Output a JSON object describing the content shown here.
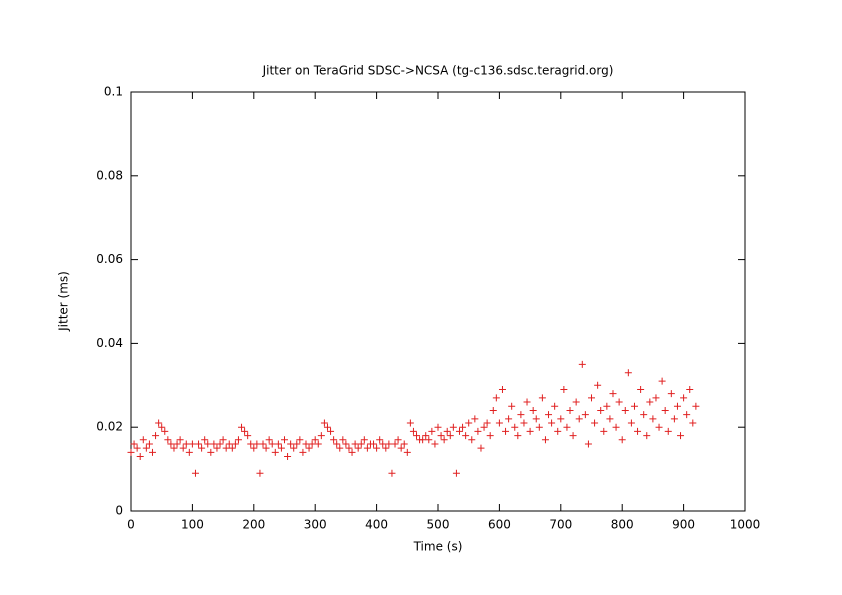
{
  "chart_data": {
    "type": "scatter",
    "title": "Jitter on TeraGrid SDSC->NCSA (tg-c136.sdsc.teragrid.org)",
    "x_label": "Time (s)",
    "y_label": "Jitter (ms)",
    "x": [
      0,
      5,
      10,
      15,
      20,
      25,
      30,
      35,
      40,
      45,
      50,
      55,
      60,
      65,
      70,
      75,
      80,
      85,
      90,
      95,
      100,
      105,
      110,
      115,
      120,
      125,
      130,
      135,
      140,
      145,
      150,
      155,
      160,
      165,
      170,
      175,
      180,
      185,
      190,
      195,
      200,
      205,
      210,
      215,
      220,
      225,
      230,
      235,
      240,
      245,
      250,
      255,
      260,
      265,
      270,
      275,
      280,
      285,
      290,
      295,
      300,
      305,
      310,
      315,
      320,
      325,
      330,
      335,
      340,
      345,
      350,
      355,
      360,
      365,
      370,
      375,
      380,
      385,
      390,
      395,
      400,
      405,
      410,
      415,
      420,
      425,
      430,
      435,
      440,
      445,
      450,
      455,
      460,
      465,
      470,
      475,
      480,
      485,
      490,
      495,
      500,
      505,
      510,
      515,
      520,
      525,
      530,
      535,
      540,
      545,
      550,
      555,
      560,
      565,
      570,
      575,
      580,
      585,
      590,
      595,
      600,
      605,
      610,
      615,
      620,
      625,
      630,
      635,
      640,
      645,
      650,
      655,
      660,
      665,
      670,
      675,
      680,
      685,
      690,
      695,
      700,
      705,
      710,
      715,
      720,
      725,
      730,
      735,
      740,
      745,
      750,
      755,
      760,
      765,
      770,
      775,
      780,
      785,
      790,
      795,
      800,
      805,
      810,
      815,
      820,
      825,
      830,
      835,
      840,
      845,
      850,
      855,
      860,
      865,
      870,
      875,
      880,
      885,
      890,
      895,
      900,
      905,
      910,
      915,
      920
    ],
    "series": [
      {
        "color": "#e02020",
        "values": [
          0.014,
          0.016,
          0.015,
          0.013,
          0.017,
          0.015,
          0.016,
          0.014,
          0.018,
          0.021,
          0.02,
          0.019,
          0.017,
          0.016,
          0.015,
          0.016,
          0.017,
          0.015,
          0.016,
          0.014,
          0.016,
          0.009,
          0.016,
          0.015,
          0.017,
          0.016,
          0.014,
          0.016,
          0.015,
          0.016,
          0.017,
          0.015,
          0.016,
          0.015,
          0.016,
          0.017,
          0.02,
          0.019,
          0.018,
          0.016,
          0.015,
          0.016,
          0.009,
          0.016,
          0.015,
          0.017,
          0.016,
          0.014,
          0.016,
          0.015,
          0.017,
          0.013,
          0.016,
          0.015,
          0.016,
          0.017,
          0.014,
          0.016,
          0.015,
          0.016,
          0.017,
          0.016,
          0.018,
          0.021,
          0.02,
          0.019,
          0.017,
          0.016,
          0.015,
          0.017,
          0.016,
          0.015,
          0.014,
          0.016,
          0.015,
          0.016,
          0.017,
          0.015,
          0.016,
          0.016,
          0.015,
          0.017,
          0.016,
          0.015,
          0.016,
          0.009,
          0.016,
          0.017,
          0.015,
          0.016,
          0.014,
          0.021,
          0.019,
          0.018,
          0.017,
          0.017,
          0.018,
          0.017,
          0.019,
          0.016,
          0.02,
          0.018,
          0.017,
          0.019,
          0.018,
          0.02,
          0.009,
          0.019,
          0.02,
          0.018,
          0.021,
          0.017,
          0.022,
          0.019,
          0.015,
          0.02,
          0.021,
          0.018,
          0.024,
          0.027,
          0.021,
          0.029,
          0.019,
          0.022,
          0.025,
          0.02,
          0.018,
          0.023,
          0.021,
          0.026,
          0.019,
          0.024,
          0.022,
          0.02,
          0.027,
          0.017,
          0.023,
          0.021,
          0.025,
          0.019,
          0.022,
          0.029,
          0.02,
          0.024,
          0.018,
          0.026,
          0.022,
          0.035,
          0.023,
          0.016,
          0.027,
          0.021,
          0.03,
          0.024,
          0.019,
          0.025,
          0.022,
          0.028,
          0.02,
          0.026,
          0.017,
          0.024,
          0.033,
          0.021,
          0.025,
          0.019,
          0.029,
          0.023,
          0.018,
          0.026,
          0.022,
          0.027,
          0.02,
          0.031,
          0.024,
          0.019,
          0.028,
          0.022,
          0.025,
          0.018,
          0.027,
          0.023,
          0.029,
          0.021,
          0.025
        ]
      }
    ],
    "xlim": [
      0,
      1000
    ],
    "xticks": [
      0,
      100,
      200,
      300,
      400,
      500,
      600,
      700,
      800,
      900,
      1000
    ],
    "ylim": [
      0,
      0.1
    ],
    "yticks": [
      0,
      0.02,
      0.04,
      0.06,
      0.08,
      0.1
    ]
  }
}
